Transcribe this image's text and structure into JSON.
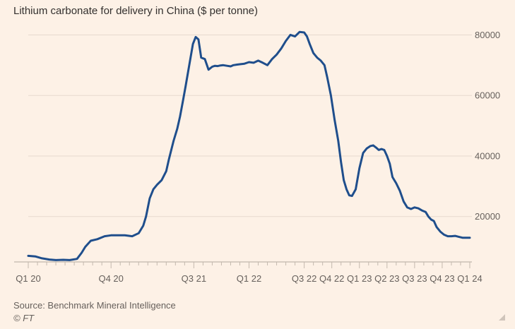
{
  "chart_data": {
    "type": "line",
    "title": "Lithium carbonate for delivery in China ($ per tonne)",
    "xlabel": "",
    "ylabel": "",
    "ylim": [
      5000,
      85000
    ],
    "yticks": [
      20000,
      40000,
      60000,
      80000
    ],
    "ytick_labels": [
      "20000",
      "40000",
      "60000",
      "80000"
    ],
    "xlim": [
      0,
      48
    ],
    "xticks": [
      {
        "label": "Q1 20",
        "x": 0
      },
      {
        "label": "Q4 20",
        "x": 9
      },
      {
        "label": "Q3 21",
        "x": 18
      },
      {
        "label": "Q1 22",
        "x": 24
      },
      {
        "label": "Q3 22",
        "x": 30
      },
      {
        "label": "Q4 22",
        "x": 33
      },
      {
        "label": "Q1 23",
        "x": 36
      },
      {
        "label": "Q2 23",
        "x": 39
      },
      {
        "label": "Q3 23",
        "x": 42
      },
      {
        "label": "Q4 23",
        "x": 45
      },
      {
        "label": "Q1 24",
        "x": 48
      }
    ],
    "grid": true,
    "series": [
      {
        "name": "Lithium carbonate price",
        "color": "#1f4e8c",
        "x": [
          0,
          0.8,
          1.5,
          2.3,
          3,
          3.8,
          4.5,
          5.3,
          5.8,
          6.2,
          6.8,
          7.5,
          8.3,
          9,
          9.8,
          10.5,
          11.3,
          12,
          12.5,
          12.8,
          13.2,
          13.6,
          14,
          14.5,
          15,
          15.3,
          15.8,
          16.2,
          16.5,
          16.8,
          17.1,
          17.5,
          17.9,
          18.2,
          18.5,
          18.8,
          19.2,
          19.6,
          20,
          20.3,
          20.6,
          20.9,
          21.2,
          21.6,
          22,
          22.3,
          22.7,
          23,
          23.5,
          24,
          24.5,
          25,
          25.5,
          26,
          26.5,
          27,
          27.5,
          28,
          28.5,
          29,
          29.5,
          30,
          30.3,
          30.6,
          31,
          31.4,
          31.8,
          32.2,
          32.5,
          32.9,
          33.3,
          33.7,
          34,
          34.3,
          34.6,
          34.9,
          35.2,
          35.6,
          36,
          36.4,
          36.8,
          37.2,
          37.5,
          37.8,
          38.1,
          38.4,
          38.7,
          39,
          39.3,
          39.6,
          40,
          40.4,
          40.8,
          41.2,
          41.6,
          42,
          42.4,
          42.8,
          43.2,
          43.5,
          43.8,
          44.1,
          44.4,
          44.8,
          45.2,
          45.6,
          46,
          46.4,
          46.8,
          47.2,
          47.6,
          48
        ],
        "values": [
          7000,
          6800,
          6200,
          5800,
          5600,
          5700,
          5600,
          6000,
          8000,
          10000,
          12000,
          12500,
          13500,
          13800,
          13800,
          13800,
          13500,
          14500,
          17000,
          20000,
          26000,
          29000,
          30500,
          32000,
          35000,
          39000,
          45000,
          49000,
          53000,
          58000,
          63000,
          70000,
          77000,
          79300,
          78500,
          72500,
          72000,
          68500,
          69500,
          69800,
          69700,
          69900,
          70000,
          69800,
          69600,
          70000,
          70200,
          70300,
          70500,
          71000,
          70800,
          71500,
          70800,
          70000,
          72000,
          73500,
          75500,
          78000,
          80000,
          79500,
          81000,
          80800,
          79500,
          77000,
          74000,
          72500,
          71500,
          70000,
          66000,
          60000,
          52000,
          45000,
          38000,
          32000,
          29000,
          27000,
          26800,
          29000,
          36000,
          41000,
          42500,
          43300,
          43500,
          42800,
          42000,
          42300,
          42000,
          40000,
          37500,
          33000,
          31000,
          28500,
          25000,
          23000,
          22500,
          23000,
          22700,
          22000,
          21500,
          20000,
          19000,
          18500,
          16500,
          15000,
          14000,
          13500,
          13500,
          13600,
          13300,
          13000,
          13000,
          13000
        ]
      }
    ]
  },
  "footer": {
    "source": "Source: Benchmark Mineral Intelligence",
    "copyright": "© FT"
  }
}
